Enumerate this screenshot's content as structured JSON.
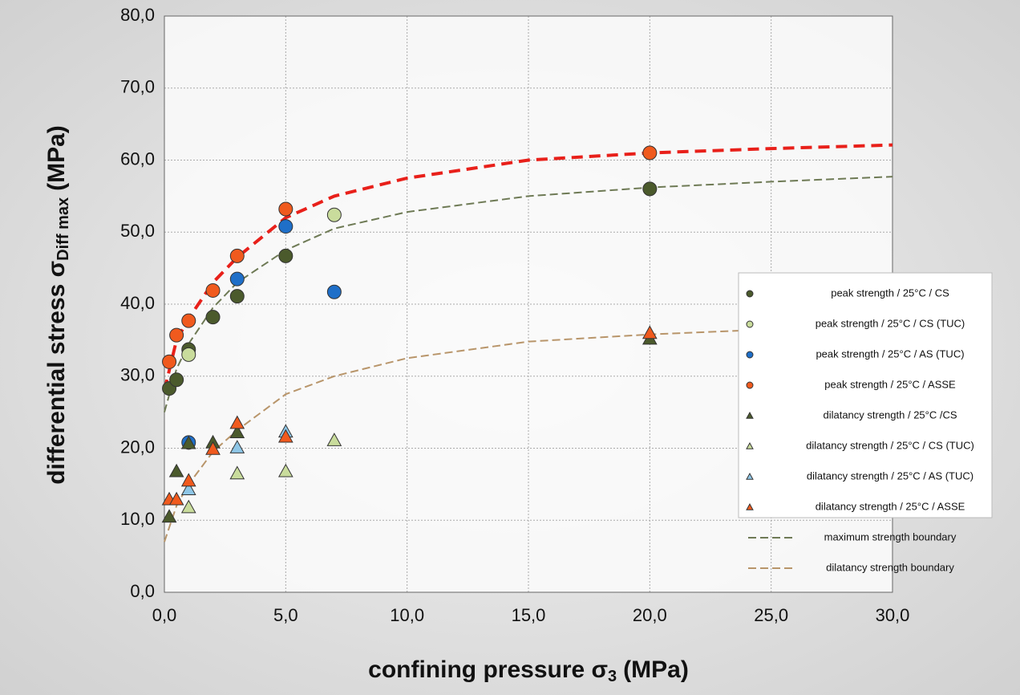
{
  "chart_data": {
    "type": "scatter",
    "xlabel": {
      "text": "confining pressure σ",
      "sub": "3",
      "unit": "(MPa)"
    },
    "ylabel": {
      "text": "differential stress σ",
      "sub": "Diff max",
      "unit": "(MPa)"
    },
    "xlim": [
      0,
      30
    ],
    "ylim": [
      0,
      80
    ],
    "xticks": [
      {
        "value": 0,
        "label": "0,0"
      },
      {
        "value": 5,
        "label": "5,0"
      },
      {
        "value": 10,
        "label": "10,0"
      },
      {
        "value": 15,
        "label": "15,0"
      },
      {
        "value": 20,
        "label": "20,0"
      },
      {
        "value": 25,
        "label": "25,0"
      },
      {
        "value": 30,
        "label": "30,0"
      }
    ],
    "yticks": [
      {
        "value": 0,
        "label": "0,0"
      },
      {
        "value": 10,
        "label": "10,0"
      },
      {
        "value": 20,
        "label": "20,0"
      },
      {
        "value": 30,
        "label": "30,0"
      },
      {
        "value": 40,
        "label": "40,0"
      },
      {
        "value": 50,
        "label": "50,0"
      },
      {
        "value": 60,
        "label": "60,0"
      },
      {
        "value": 70,
        "label": "70,0"
      },
      {
        "value": 80,
        "label": "80,0"
      }
    ],
    "grid": true,
    "legend": "right",
    "series": [
      {
        "name": "peak strength / 25°C / CS",
        "marker": "circle",
        "color": "#4b5a2c",
        "x": [
          0.2,
          0.5,
          1,
          2,
          3,
          5,
          20
        ],
        "values": [
          28.3,
          29.5,
          33.7,
          38.2,
          41.1,
          46.7,
          56.0
        ]
      },
      {
        "name": "peak strength / 25°C / CS (TUC)",
        "marker": "circle",
        "color": "#c9dc9c",
        "x": [
          1,
          7
        ],
        "values": [
          33.0,
          52.4
        ]
      },
      {
        "name": "peak strength / 25°C / AS (TUC)",
        "marker": "circle",
        "color": "#1f6fc8",
        "x": [
          1,
          3,
          5,
          7
        ],
        "values": [
          20.8,
          43.5,
          50.8,
          41.7
        ]
      },
      {
        "name": "peak strength / 25°C / ASSE",
        "marker": "circle",
        "color": "#f05a1e",
        "x": [
          0.2,
          0.5,
          1,
          2,
          3,
          5,
          20
        ],
        "values": [
          32.0,
          35.7,
          37.7,
          41.9,
          46.7,
          53.2,
          61.0
        ]
      },
      {
        "name": "dilatancy strength / 25°C /CS",
        "marker": "triangle",
        "color": "#4b5a2c",
        "x": [
          0.2,
          0.5,
          1,
          2,
          3,
          20
        ],
        "values": [
          10.5,
          16.8,
          20.7,
          20.8,
          22.2,
          35.2
        ]
      },
      {
        "name": "dilatancy strength / 25°C / CS (TUC)",
        "marker": "triangle",
        "color": "#c9dc9c",
        "x": [
          1,
          3,
          5,
          7
        ],
        "values": [
          11.8,
          16.5,
          16.8,
          21.1
        ]
      },
      {
        "name": "dilatancy strength / 25°C / AS (TUC)",
        "marker": "triangle",
        "color": "#8ec6e6",
        "x": [
          1,
          3,
          5
        ],
        "values": [
          14.3,
          20.1,
          22.3
        ]
      },
      {
        "name": "dilatancy strength / 25°C / ASSE",
        "marker": "triangle",
        "color": "#f05a1e",
        "x": [
          0.2,
          0.5,
          1,
          2,
          3,
          5,
          20
        ],
        "values": [
          12.9,
          12.9,
          15.5,
          19.9,
          23.5,
          21.6,
          36.0
        ]
      },
      {
        "name": "maximum strength boundary",
        "marker": "line",
        "color": "#6e7a55",
        "x": [
          0,
          0.5,
          1,
          2,
          3,
          5,
          7,
          10,
          15,
          20,
          25,
          30
        ],
        "values": [
          25,
          31,
          34.5,
          39.5,
          43,
          47.5,
          50.5,
          52.8,
          55,
          56.2,
          57,
          57.7
        ]
      },
      {
        "name": "dilatancy strength boundary",
        "marker": "line",
        "color": "#b8956a",
        "x": [
          0,
          0.5,
          1,
          2,
          3,
          5,
          7,
          10,
          15,
          20,
          25,
          30
        ],
        "values": [
          7,
          12,
          15,
          19.5,
          22.5,
          27.5,
          30,
          32.5,
          34.8,
          35.8,
          36.5,
          37
        ]
      },
      {
        "marker": "line",
        "color": "#e8201a",
        "width": 4,
        "x": [
          0,
          0.5,
          1,
          2,
          3,
          5,
          7,
          10,
          15,
          20,
          25,
          30
        ],
        "values": [
          28,
          35,
          38,
          43,
          46.5,
          52,
          55,
          57.5,
          60,
          61,
          61.6,
          62.1
        ]
      }
    ]
  }
}
